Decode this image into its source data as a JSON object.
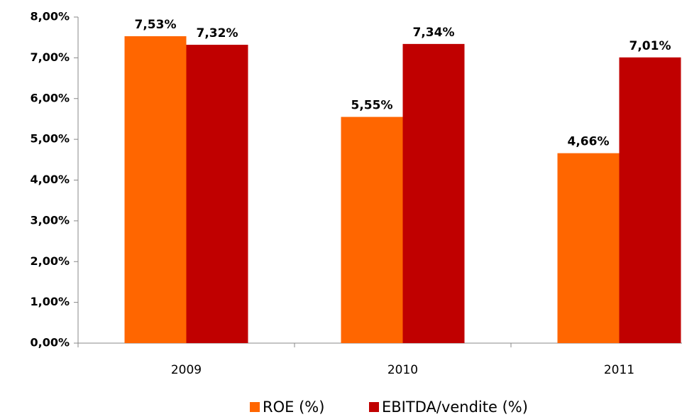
{
  "chart_data": {
    "type": "bar",
    "categories": [
      "2009",
      "2010",
      "2011"
    ],
    "series": [
      {
        "name": "ROE (%)",
        "color": "#ff6600",
        "values": [
          7.53,
          5.55,
          4.66
        ],
        "value_labels": [
          "7,53%",
          "5,55%",
          "4,66%"
        ]
      },
      {
        "name": "EBITDA/vendite (%)",
        "color": "#c00000",
        "values": [
          7.32,
          7.34,
          7.01
        ],
        "value_labels": [
          "7,32%",
          "7,34%",
          "7,01%"
        ]
      }
    ],
    "ylim": [
      0,
      8
    ],
    "yticks": [
      {
        "value": 0,
        "label": "0,00%"
      },
      {
        "value": 1,
        "label": "1,00%"
      },
      {
        "value": 2,
        "label": "2,00%"
      },
      {
        "value": 3,
        "label": "3,00%"
      },
      {
        "value": 4,
        "label": "4,00%"
      },
      {
        "value": 5,
        "label": "5,00%"
      },
      {
        "value": 6,
        "label": "6,00%"
      },
      {
        "value": 7,
        "label": "7,00%"
      },
      {
        "value": 8,
        "label": "8,00%"
      }
    ],
    "legend": "bottom"
  }
}
